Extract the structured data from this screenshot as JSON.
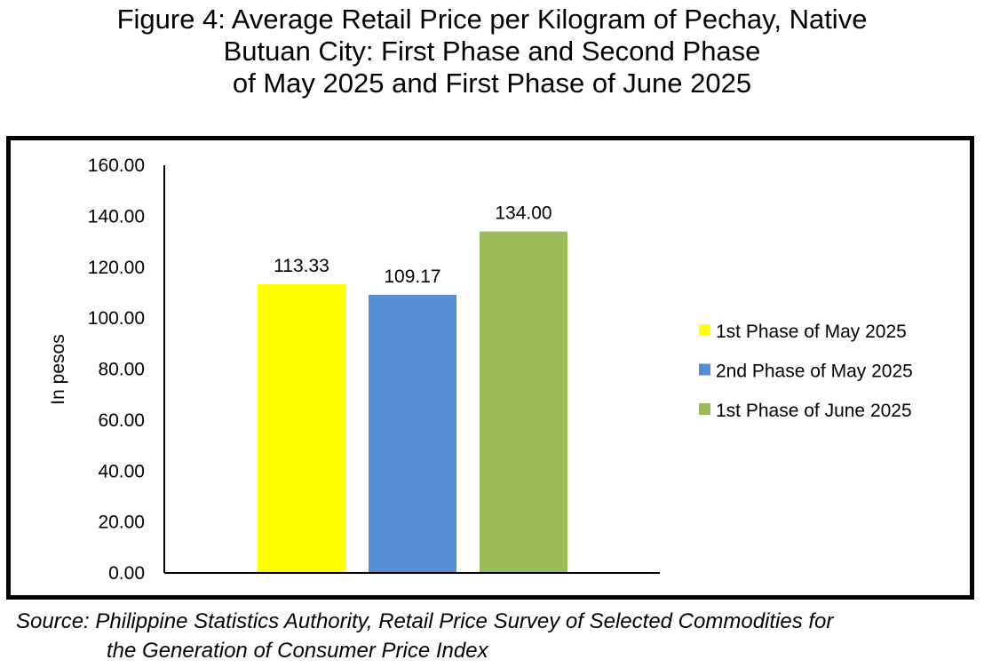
{
  "title_lines": [
    "Figure 4: Average Retail Price per Kilogram of Pechay, Native",
    "Butuan City: First Phase and Second Phase",
    "of May 2025 and First Phase of June 2025"
  ],
  "source": {
    "line1": "Source: Philippine Statistics Authority, Retail Price Survey of Selected Commodities for",
    "line2": "the Generation of Consumer Price Index"
  },
  "chart_data": {
    "type": "bar",
    "ylabel": "In pesos",
    "xlabel": "",
    "ylim": [
      0,
      160
    ],
    "y_ticks": [
      "0.00",
      "20.00",
      "40.00",
      "60.00",
      "80.00",
      "100.00",
      "120.00",
      "140.00",
      "160.00"
    ],
    "grid": false,
    "legend_position": "right",
    "series": [
      {
        "name": "1st Phase of May 2025",
        "value": 113.33,
        "label": "113.33",
        "color": "#FFFF00"
      },
      {
        "name": "2nd Phase of May 2025",
        "value": 109.17,
        "label": "109.17",
        "color": "#558ED5"
      },
      {
        "name": "1st Phase of June 2025",
        "value": 134.0,
        "label": "134.00",
        "color": "#9BBB59"
      }
    ]
  }
}
